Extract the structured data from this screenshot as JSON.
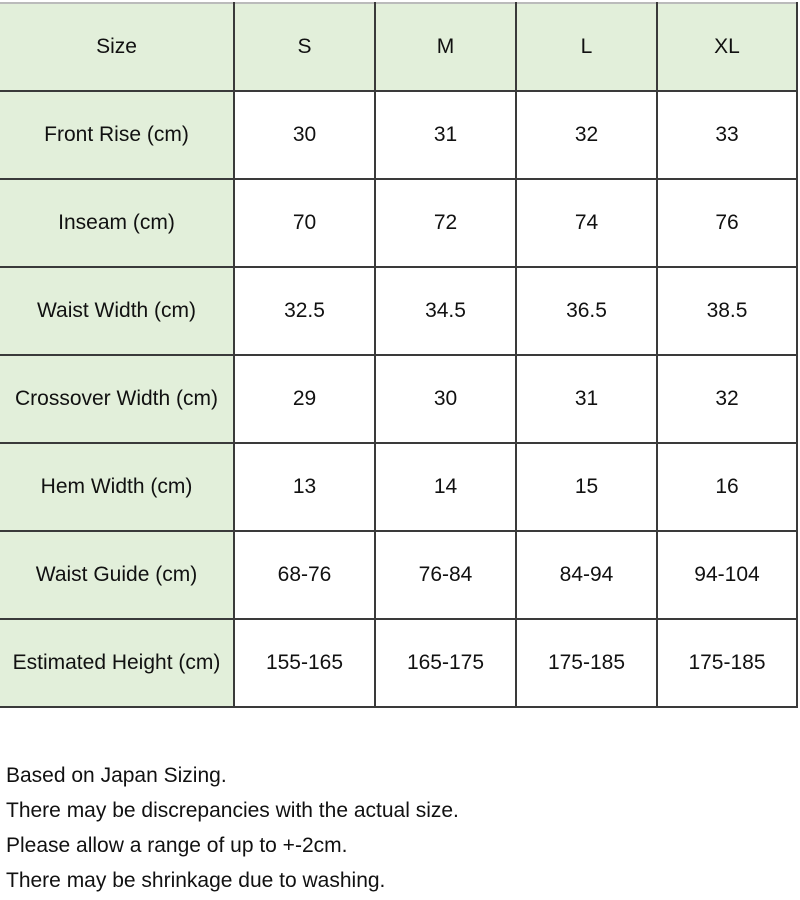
{
  "table": {
    "header": [
      "Size",
      "S",
      "M",
      "L",
      "XL"
    ],
    "rows": [
      {
        "label": "Front Rise (cm)",
        "values": [
          "30",
          "31",
          "32",
          "33"
        ]
      },
      {
        "label": "Inseam (cm)",
        "values": [
          "70",
          "72",
          "74",
          "76"
        ]
      },
      {
        "label": "Waist Width (cm)",
        "values": [
          "32.5",
          "34.5",
          "36.5",
          "38.5"
        ]
      },
      {
        "label": "Crossover Width (cm)",
        "values": [
          "29",
          "30",
          "31",
          "32"
        ]
      },
      {
        "label": "Hem Width (cm)",
        "values": [
          "13",
          "14",
          "15",
          "16"
        ]
      },
      {
        "label": "Waist Guide (cm)",
        "values": [
          "68-76",
          "76-84",
          "84-94",
          "94-104"
        ]
      },
      {
        "label": "Estimated Height (cm)",
        "values": [
          "155-165",
          "165-175",
          "175-185",
          "175-185"
        ]
      }
    ],
    "header_color": "#e2efda"
  },
  "notes": [
    "Based on Japan Sizing.",
    "There may be discrepancies with the actual size.",
    "Please allow a range of up to +-2cm.",
    "There may be shrinkage due to washing."
  ]
}
